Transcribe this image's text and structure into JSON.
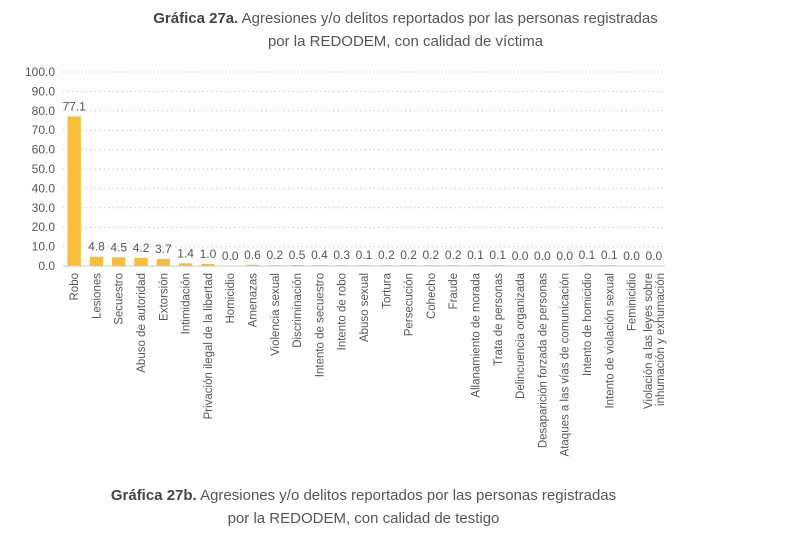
{
  "chart_data": {
    "type": "bar",
    "title_prefix": "Gráfica 27a.",
    "title": "Agresiones y/o delitos reportados por las personas registradas",
    "title_line2": "por la REDODEM, con calidad de víctima",
    "ylim": [
      0,
      100
    ],
    "yticks": [
      "100.0",
      "90.0",
      "80.0",
      "70.0",
      "60.0",
      "50.0",
      "40.0",
      "30.0",
      "20.0",
      "10.0",
      "0.0"
    ],
    "grid": "horizontal dotted",
    "bar_color": "#F6BE3A",
    "categories": [
      "Robo",
      "Lesiones",
      "Secuestro",
      "Abuso de autoridad",
      "Extorsión",
      "Intimidación",
      "Privación ilegal de la libertad",
      "Homicidio",
      "Amenazas",
      "Violencia sexual",
      "Discriminación",
      "Intento de secuestro",
      "Intento de robo",
      "Abuso sexual",
      "Tortura",
      "Persecución",
      "Cohecho",
      "Fraude",
      "Allanamiento de morada",
      "Trata de personas",
      "Delincuencia organizada",
      "Desaparición forzada de personas",
      "Ataques a las vías de comunicación",
      "Intento de homicidio",
      "Intento de violación sexual",
      "Feminicidio",
      "Violación a las leyes sobre inhumación y exhumación"
    ],
    "values": [
      77.1,
      4.8,
      4.5,
      4.2,
      3.7,
      1.4,
      1.0,
      0.0,
      0.6,
      0.2,
      0.5,
      0.4,
      0.3,
      0.1,
      0.2,
      0.2,
      0.2,
      0.2,
      0.1,
      0.1,
      0.0,
      0.0,
      0.0,
      0.1,
      0.1,
      0.0,
      0.0
    ],
    "value_labels": [
      "77.1",
      "4.8",
      "4.5",
      "4.2",
      "3.7",
      "1.4",
      "1.0",
      "0.0",
      "0.6",
      "0.2",
      "0.5",
      "0.4",
      "0.3",
      "0.1",
      "0.2",
      "0.2",
      "0.2",
      "0.2",
      "0.1",
      "0.1",
      "0.0",
      "0.0",
      "0.0",
      "0.1",
      "0.1",
      "0.0",
      "0.0"
    ]
  },
  "next_chart": {
    "title_prefix": "Gráfica 27b.",
    "title": "Agresiones y/o delitos reportados por las personas registradas",
    "title_line2": "por la REDODEM, con calidad de testigo"
  }
}
